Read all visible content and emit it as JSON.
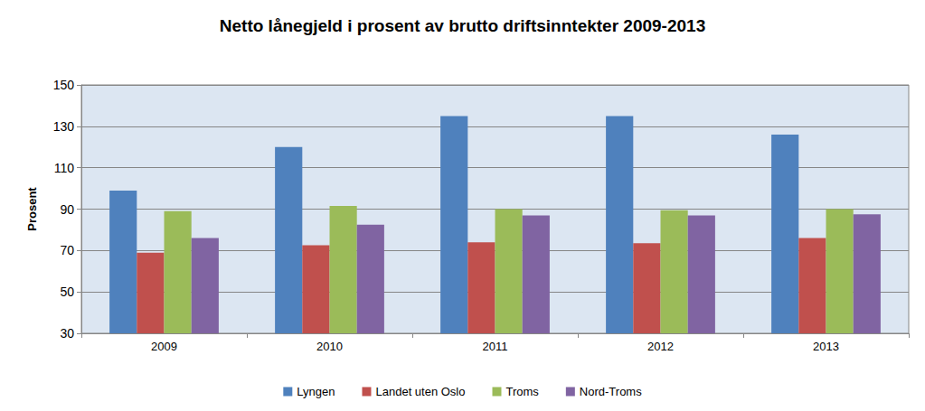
{
  "chart_data": {
    "type": "bar",
    "title": "Netto lånegjeld i prosent av brutto driftsinntekter 2009-2013",
    "y_label": "Prosent",
    "categories": [
      "2009",
      "2010",
      "2011",
      "2012",
      "2013"
    ],
    "series": [
      {
        "name": "Lyngen",
        "color": "#4f81bd",
        "values": [
          99,
          120,
          135,
          135,
          126
        ]
      },
      {
        "name": "Landet uten Oslo",
        "color": "#c0504d",
        "values": [
          69,
          72.5,
          74,
          73.5,
          76
        ]
      },
      {
        "name": "Troms",
        "color": "#9bbb59",
        "values": [
          89,
          91.5,
          90,
          89.5,
          90
        ]
      },
      {
        "name": "Nord-Troms",
        "color": "#8064a2",
        "values": [
          76,
          82.5,
          87,
          87,
          87.5
        ]
      }
    ],
    "ylim": [
      30,
      150
    ],
    "yticks": [
      30,
      50,
      70,
      90,
      110,
      130,
      150
    ],
    "grid": true,
    "legend": "bottom"
  }
}
